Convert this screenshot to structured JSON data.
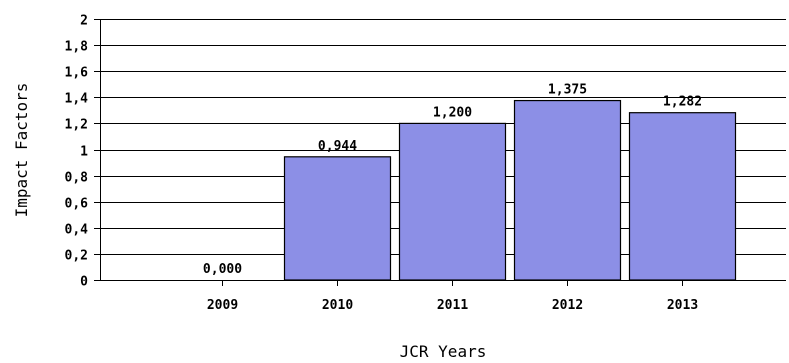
{
  "chart_data": {
    "type": "bar",
    "categories": [
      "2009",
      "2010",
      "2011",
      "2012",
      "2013"
    ],
    "values": [
      0.0,
      0.944,
      1.2,
      1.375,
      1.282
    ],
    "value_labels": [
      "0,000",
      "0,944",
      "1,200",
      "1,375",
      "1,282"
    ],
    "ylim": [
      0,
      2
    ],
    "y_ticks": [
      0,
      0.2,
      0.4,
      0.6,
      0.8,
      1,
      1.2,
      1.4,
      1.6,
      1.8,
      2
    ],
    "y_tick_labels": [
      "0",
      "0,2",
      "0,4",
      "0,6",
      "0,8",
      "1",
      "1,2",
      "1,4",
      "1,6",
      "1,8",
      "2"
    ],
    "title": "",
    "xlabel": "JCR Years",
    "ylabel": "Impact Factors",
    "grid": true,
    "bar_color": "#8c8fe6"
  }
}
